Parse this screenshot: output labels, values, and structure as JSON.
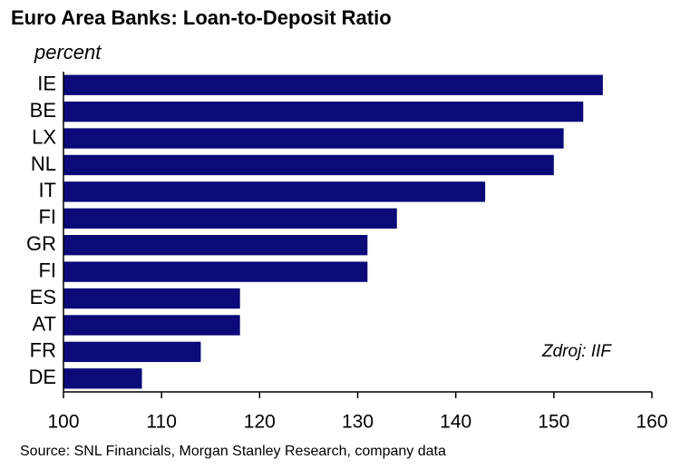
{
  "chart_data": {
    "type": "barh",
    "title": "Euro Area Banks: Loan-to-Deposit Ratio",
    "subtitle": "percent",
    "categories": [
      "IE",
      "BE",
      "LX",
      "NL",
      "IT",
      "FI",
      "GR",
      "FI",
      "ES",
      "AT",
      "FR",
      "DE"
    ],
    "values": [
      155,
      153,
      151,
      150,
      143,
      134,
      131,
      131,
      118,
      118,
      114,
      108
    ],
    "color": "#0a0a78",
    "xlim": [
      100,
      160
    ],
    "xticks": [
      100,
      110,
      120,
      130,
      140,
      150,
      160
    ],
    "annotation": "Zdroj: IIF",
    "source": "Source: SNL Financials, Morgan Stanley Research, company data"
  }
}
